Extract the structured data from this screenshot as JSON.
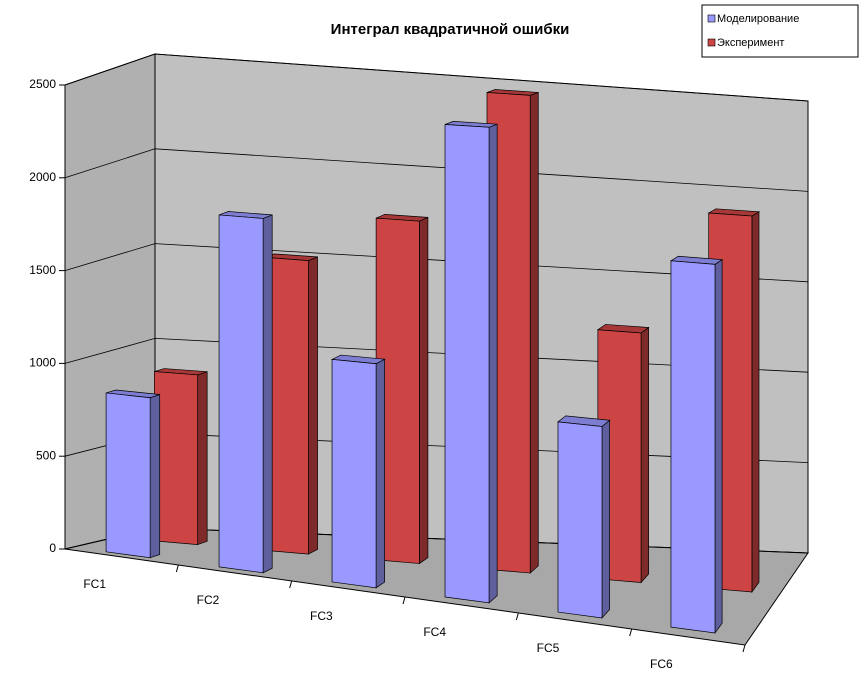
{
  "chart_data": {
    "type": "bar3d",
    "title": "Интеграл квадратичной ошибки",
    "categories": [
      "FC1",
      "FC2",
      "FC3",
      "FC4",
      "FC5",
      "FC6"
    ],
    "series": [
      {
        "name": "Моделирование",
        "color": "#9999ff",
        "values": [
          850,
          1850,
          1150,
          2400,
          950,
          1800
        ]
      },
      {
        "name": "Эксперимент",
        "color": "#cc4444",
        "values": [
          900,
          1550,
          1800,
          2500,
          1300,
          1950
        ]
      }
    ],
    "ylim": [
      0,
      2500
    ],
    "yticks": [
      0,
      500,
      1000,
      1500,
      2000,
      2500
    ],
    "grid": true,
    "legend": "top-right"
  }
}
